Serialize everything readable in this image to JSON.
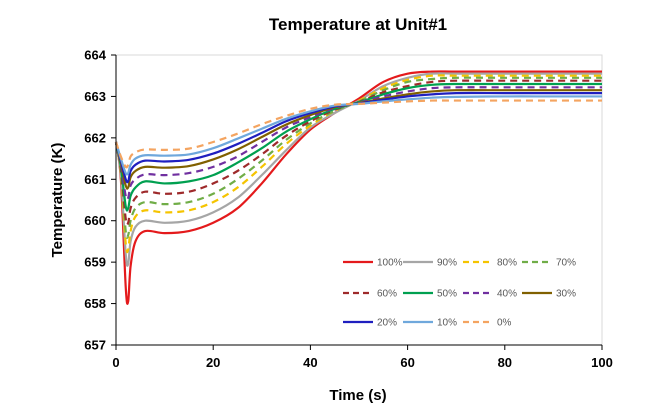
{
  "chart_data": {
    "type": "line",
    "title": "Temperature at Unit#1",
    "xlabel": "Time (s)",
    "ylabel": "Temperature (K)",
    "xlim": [
      0,
      100
    ],
    "ylim": [
      657,
      664
    ],
    "xticks": [
      0,
      20,
      40,
      60,
      80,
      100
    ],
    "yticks": [
      657,
      658,
      659,
      660,
      661,
      662,
      663,
      664
    ],
    "grid": false,
    "legend_position": "bottom-right",
    "series": [
      {
        "name": "100%",
        "color": "#e41a1c",
        "dash": "solid",
        "points": [
          [
            0,
            661.9
          ],
          [
            1,
            661.0
          ],
          [
            2,
            658.4
          ],
          [
            2.5,
            658.05
          ],
          [
            3,
            658.9
          ],
          [
            4,
            659.5
          ],
          [
            6,
            659.75
          ],
          [
            10,
            659.7
          ],
          [
            15,
            659.75
          ],
          [
            20,
            659.95
          ],
          [
            25,
            660.3
          ],
          [
            30,
            660.9
          ],
          [
            35,
            661.6
          ],
          [
            40,
            662.2
          ],
          [
            45,
            662.6
          ],
          [
            50,
            662.95
          ],
          [
            55,
            663.35
          ],
          [
            60,
            663.55
          ],
          [
            65,
            663.6
          ],
          [
            70,
            663.6
          ],
          [
            80,
            663.6
          ],
          [
            90,
            663.6
          ],
          [
            100,
            663.6
          ]
        ]
      },
      {
        "name": "90%",
        "color": "#a6a6a6",
        "dash": "solid",
        "points": [
          [
            0,
            661.9
          ],
          [
            1,
            661.1
          ],
          [
            2,
            659.2
          ],
          [
            2.5,
            658.95
          ],
          [
            3,
            659.5
          ],
          [
            4,
            659.85
          ],
          [
            6,
            660.0
          ],
          [
            10,
            659.95
          ],
          [
            15,
            660.0
          ],
          [
            20,
            660.2
          ],
          [
            25,
            660.55
          ],
          [
            30,
            661.1
          ],
          [
            35,
            661.7
          ],
          [
            40,
            662.25
          ],
          [
            45,
            662.6
          ],
          [
            50,
            662.9
          ],
          [
            55,
            663.25
          ],
          [
            60,
            663.45
          ],
          [
            65,
            663.55
          ],
          [
            70,
            663.55
          ],
          [
            80,
            663.55
          ],
          [
            90,
            663.55
          ],
          [
            100,
            663.55
          ]
        ]
      },
      {
        "name": "80%",
        "color": "#f5c400",
        "dash": "dashed",
        "points": [
          [
            0,
            661.9
          ],
          [
            1,
            661.15
          ],
          [
            2,
            659.45
          ],
          [
            2.5,
            659.3
          ],
          [
            3,
            659.75
          ],
          [
            4,
            660.1
          ],
          [
            6,
            660.25
          ],
          [
            10,
            660.2
          ],
          [
            15,
            660.25
          ],
          [
            20,
            660.45
          ],
          [
            25,
            660.8
          ],
          [
            30,
            661.3
          ],
          [
            35,
            661.85
          ],
          [
            40,
            662.3
          ],
          [
            45,
            662.65
          ],
          [
            50,
            662.9
          ],
          [
            55,
            663.2
          ],
          [
            60,
            663.4
          ],
          [
            65,
            663.5
          ],
          [
            70,
            663.5
          ],
          [
            80,
            663.5
          ],
          [
            90,
            663.5
          ],
          [
            100,
            663.5
          ]
        ]
      },
      {
        "name": "70%",
        "color": "#70ad47",
        "dash": "dashed",
        "points": [
          [
            0,
            661.9
          ],
          [
            1,
            661.2
          ],
          [
            2,
            659.75
          ],
          [
            2.5,
            659.65
          ],
          [
            3,
            660.0
          ],
          [
            4,
            660.3
          ],
          [
            6,
            660.45
          ],
          [
            10,
            660.4
          ],
          [
            15,
            660.45
          ],
          [
            20,
            660.65
          ],
          [
            25,
            661.0
          ],
          [
            30,
            661.45
          ],
          [
            35,
            661.95
          ],
          [
            40,
            662.35
          ],
          [
            45,
            662.65
          ],
          [
            50,
            662.88
          ],
          [
            55,
            663.15
          ],
          [
            60,
            663.35
          ],
          [
            65,
            663.42
          ],
          [
            70,
            663.45
          ],
          [
            80,
            663.45
          ],
          [
            90,
            663.45
          ],
          [
            100,
            663.45
          ]
        ]
      },
      {
        "name": "60%",
        "color": "#9e2a2b",
        "dash": "dashed",
        "points": [
          [
            0,
            661.9
          ],
          [
            1,
            661.25
          ],
          [
            2,
            660.05
          ],
          [
            2.5,
            659.95
          ],
          [
            3,
            660.3
          ],
          [
            4,
            660.55
          ],
          [
            6,
            660.7
          ],
          [
            10,
            660.65
          ],
          [
            15,
            660.7
          ],
          [
            20,
            660.9
          ],
          [
            25,
            661.2
          ],
          [
            30,
            661.6
          ],
          [
            35,
            662.05
          ],
          [
            40,
            662.4
          ],
          [
            45,
            662.68
          ],
          [
            50,
            662.87
          ],
          [
            55,
            663.1
          ],
          [
            60,
            663.25
          ],
          [
            65,
            663.35
          ],
          [
            70,
            663.38
          ],
          [
            80,
            663.38
          ],
          [
            90,
            663.38
          ],
          [
            100,
            663.38
          ]
        ]
      },
      {
        "name": "50%",
        "color": "#00a050",
        "dash": "solid",
        "points": [
          [
            0,
            661.9
          ],
          [
            1,
            661.3
          ],
          [
            2,
            660.35
          ],
          [
            2.5,
            660.3
          ],
          [
            3,
            660.6
          ],
          [
            4,
            660.8
          ],
          [
            6,
            660.95
          ],
          [
            10,
            660.9
          ],
          [
            15,
            660.95
          ],
          [
            20,
            661.1
          ],
          [
            25,
            661.4
          ],
          [
            30,
            661.75
          ],
          [
            35,
            662.15
          ],
          [
            40,
            662.45
          ],
          [
            45,
            662.7
          ],
          [
            50,
            662.86
          ],
          [
            55,
            663.05
          ],
          [
            60,
            663.2
          ],
          [
            65,
            663.28
          ],
          [
            70,
            663.3
          ],
          [
            80,
            663.3
          ],
          [
            90,
            663.3
          ],
          [
            100,
            663.3
          ]
        ]
      },
      {
        "name": "40%",
        "color": "#7030a0",
        "dash": "dashed",
        "points": [
          [
            0,
            661.9
          ],
          [
            1,
            661.35
          ],
          [
            2,
            660.6
          ],
          [
            2.5,
            660.55
          ],
          [
            3,
            660.85
          ],
          [
            4,
            661.0
          ],
          [
            6,
            661.12
          ],
          [
            10,
            661.1
          ],
          [
            15,
            661.15
          ],
          [
            20,
            661.3
          ],
          [
            25,
            661.55
          ],
          [
            30,
            661.9
          ],
          [
            35,
            662.25
          ],
          [
            40,
            662.5
          ],
          [
            45,
            662.72
          ],
          [
            50,
            662.85
          ],
          [
            55,
            663.0
          ],
          [
            60,
            663.12
          ],
          [
            65,
            663.2
          ],
          [
            70,
            663.22
          ],
          [
            80,
            663.22
          ],
          [
            90,
            663.22
          ],
          [
            100,
            663.22
          ]
        ]
      },
      {
        "name": "30%",
        "color": "#806000",
        "dash": "solid",
        "points": [
          [
            0,
            661.9
          ],
          [
            1,
            661.4
          ],
          [
            2,
            660.85
          ],
          [
            2.5,
            660.8
          ],
          [
            3,
            661.05
          ],
          [
            4,
            661.2
          ],
          [
            6,
            661.3
          ],
          [
            10,
            661.28
          ],
          [
            15,
            661.32
          ],
          [
            20,
            661.48
          ],
          [
            25,
            661.72
          ],
          [
            30,
            662.02
          ],
          [
            35,
            662.32
          ],
          [
            40,
            662.55
          ],
          [
            45,
            662.74
          ],
          [
            50,
            662.84
          ],
          [
            55,
            662.95
          ],
          [
            60,
            663.05
          ],
          [
            65,
            663.12
          ],
          [
            70,
            663.15
          ],
          [
            80,
            663.15
          ],
          [
            90,
            663.15
          ],
          [
            100,
            663.15
          ]
        ]
      },
      {
        "name": "20%",
        "color": "#1f1fbf",
        "dash": "solid",
        "points": [
          [
            0,
            661.9
          ],
          [
            1,
            661.45
          ],
          [
            2,
            661.0
          ],
          [
            2.5,
            660.95
          ],
          [
            3,
            661.2
          ],
          [
            4,
            661.35
          ],
          [
            6,
            661.45
          ],
          [
            10,
            661.43
          ],
          [
            15,
            661.47
          ],
          [
            20,
            661.62
          ],
          [
            25,
            661.85
          ],
          [
            30,
            662.12
          ],
          [
            35,
            662.4
          ],
          [
            40,
            662.6
          ],
          [
            45,
            662.76
          ],
          [
            50,
            662.83
          ],
          [
            55,
            662.92
          ],
          [
            60,
            663.0
          ],
          [
            65,
            663.05
          ],
          [
            70,
            663.08
          ],
          [
            80,
            663.08
          ],
          [
            90,
            663.08
          ],
          [
            100,
            663.08
          ]
        ]
      },
      {
        "name": "10%",
        "color": "#6fa8dc",
        "dash": "solid",
        "points": [
          [
            0,
            661.9
          ],
          [
            1,
            661.5
          ],
          [
            2,
            661.15
          ],
          [
            2.5,
            661.15
          ],
          [
            3,
            661.35
          ],
          [
            4,
            661.5
          ],
          [
            6,
            661.58
          ],
          [
            10,
            661.57
          ],
          [
            15,
            661.6
          ],
          [
            20,
            661.75
          ],
          [
            25,
            661.98
          ],
          [
            30,
            662.22
          ],
          [
            35,
            662.46
          ],
          [
            40,
            662.64
          ],
          [
            45,
            662.78
          ],
          [
            50,
            662.82
          ],
          [
            55,
            662.88
          ],
          [
            60,
            662.93
          ],
          [
            65,
            662.97
          ],
          [
            70,
            662.99
          ],
          [
            80,
            663.0
          ],
          [
            90,
            663.0
          ],
          [
            100,
            663.0
          ]
        ]
      },
      {
        "name": "0%",
        "color": "#f4a460",
        "dash": "dashed",
        "points": [
          [
            0,
            661.9
          ],
          [
            1,
            661.55
          ],
          [
            2,
            661.3
          ],
          [
            2.5,
            661.35
          ],
          [
            3,
            661.55
          ],
          [
            4,
            661.65
          ],
          [
            6,
            661.72
          ],
          [
            10,
            661.71
          ],
          [
            15,
            661.74
          ],
          [
            20,
            661.9
          ],
          [
            25,
            662.1
          ],
          [
            30,
            662.33
          ],
          [
            35,
            662.53
          ],
          [
            40,
            662.7
          ],
          [
            45,
            662.8
          ],
          [
            50,
            662.82
          ],
          [
            55,
            662.85
          ],
          [
            60,
            662.88
          ],
          [
            65,
            662.9
          ],
          [
            70,
            662.9
          ],
          [
            80,
            662.9
          ],
          [
            90,
            662.9
          ],
          [
            100,
            662.9
          ]
        ]
      }
    ]
  }
}
